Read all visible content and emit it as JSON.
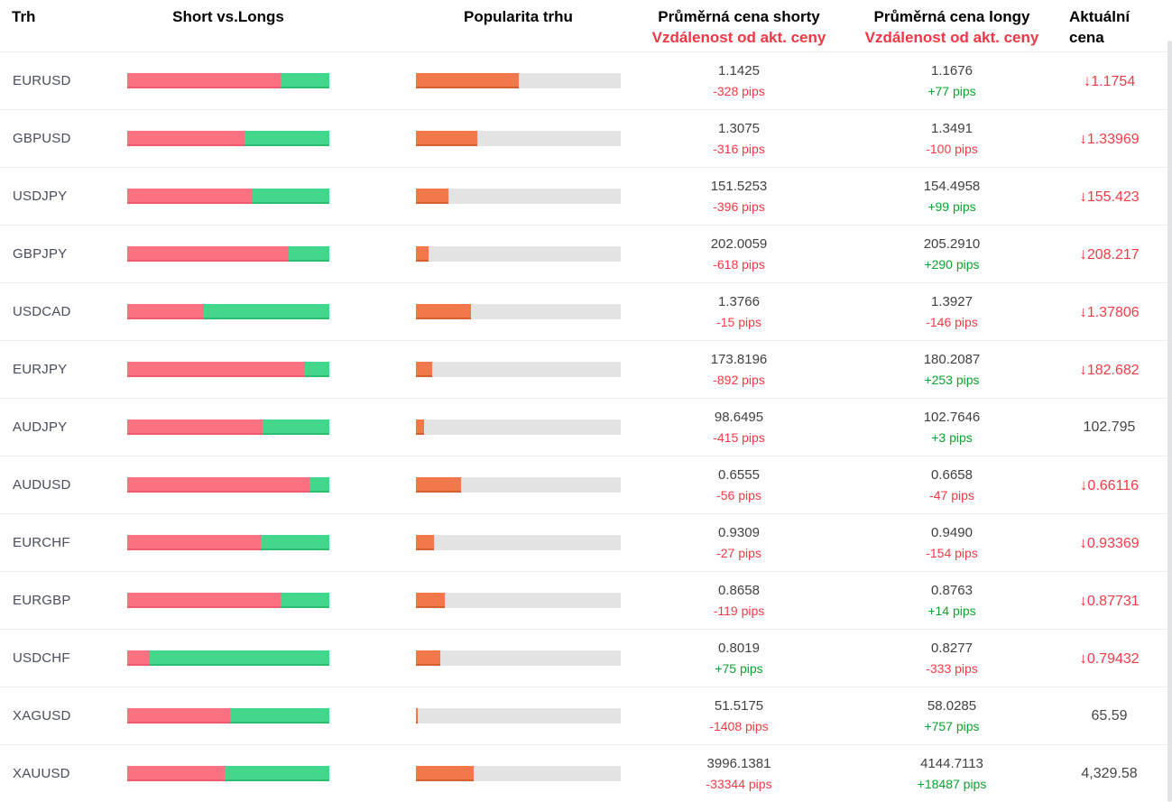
{
  "header": {
    "market": "Trh",
    "short_vs_long": "Short vs.Longs",
    "popularity": "Popularita trhu",
    "avg_short_line1": "Průměrná cena shorty",
    "avg_short_line2": "Vzdálenost od akt. ceny",
    "avg_long_line1": "Průměrná cena longy",
    "avg_long_line2": "Vzdálenost od akt. ceny",
    "current_line1": "Aktuální",
    "current_line2": "cena"
  },
  "icons": {
    "down_arrow": "↓"
  },
  "colors": {
    "accent_red": "#f43b45",
    "accent_green": "#0aa32f",
    "header_sub_red": "#f23645",
    "bar_shorts": "#fc7182",
    "bar_longs": "#43d78c",
    "bar_popularity": "#f0784a",
    "bar_track": "#e3e3e3"
  },
  "rows": [
    {
      "market": "EURUSD",
      "short_pct": 76,
      "long_pct": 24,
      "popularity_pct": 50,
      "short_price": "1.1425",
      "short_dist": "-328 pips",
      "long_price": "1.1676",
      "long_dist": "+77 pips",
      "current_price": "1.1754",
      "current_down": true
    },
    {
      "market": "GBPUSD",
      "short_pct": 58,
      "long_pct": 42,
      "popularity_pct": 30,
      "short_price": "1.3075",
      "short_dist": "-316 pips",
      "long_price": "1.3491",
      "long_dist": "-100 pips",
      "current_price": "1.33969",
      "current_down": true
    },
    {
      "market": "USDJPY",
      "short_pct": 62,
      "long_pct": 38,
      "popularity_pct": 16,
      "short_price": "151.5253",
      "short_dist": "-396 pips",
      "long_price": "154.4958",
      "long_dist": "+99 pips",
      "current_price": "155.423",
      "current_down": true
    },
    {
      "market": "GBPJPY",
      "short_pct": 80,
      "long_pct": 20,
      "popularity_pct": 6,
      "short_price": "202.0059",
      "short_dist": "-618 pips",
      "long_price": "205.2910",
      "long_dist": "+290 pips",
      "current_price": "208.217",
      "current_down": true
    },
    {
      "market": "USDCAD",
      "short_pct": 38,
      "long_pct": 62,
      "popularity_pct": 27,
      "short_price": "1.3766",
      "short_dist": "-15 pips",
      "long_price": "1.3927",
      "long_dist": "-146 pips",
      "current_price": "1.37806",
      "current_down": true
    },
    {
      "market": "EURJPY",
      "short_pct": 88,
      "long_pct": 12,
      "popularity_pct": 8,
      "short_price": "173.8196",
      "short_dist": "-892 pips",
      "long_price": "180.2087",
      "long_dist": "+253 pips",
      "current_price": "182.682",
      "current_down": true
    },
    {
      "market": "AUDJPY",
      "short_pct": 67,
      "long_pct": 33,
      "popularity_pct": 4,
      "short_price": "98.6495",
      "short_dist": "-415 pips",
      "long_price": "102.7646",
      "long_dist": "+3 pips",
      "current_price": "102.795",
      "current_down": false
    },
    {
      "market": "AUDUSD",
      "short_pct": 90,
      "long_pct": 10,
      "popularity_pct": 22,
      "short_price": "0.6555",
      "short_dist": "-56 pips",
      "long_price": "0.6658",
      "long_dist": "-47 pips",
      "current_price": "0.66116",
      "current_down": true
    },
    {
      "market": "EURCHF",
      "short_pct": 66,
      "long_pct": 34,
      "popularity_pct": 9,
      "short_price": "0.9309",
      "short_dist": "-27 pips",
      "long_price": "0.9490",
      "long_dist": "-154 pips",
      "current_price": "0.93369",
      "current_down": true
    },
    {
      "market": "EURGBP",
      "short_pct": 76,
      "long_pct": 24,
      "popularity_pct": 14,
      "short_price": "0.8658",
      "short_dist": "-119 pips",
      "long_price": "0.8763",
      "long_dist": "+14 pips",
      "current_price": "0.87731",
      "current_down": true
    },
    {
      "market": "USDCHF",
      "short_pct": 11,
      "long_pct": 89,
      "popularity_pct": 12,
      "short_price": "0.8019",
      "short_dist": "+75 pips",
      "long_price": "0.8277",
      "long_dist": "-333 pips",
      "current_price": "0.79432",
      "current_down": true
    },
    {
      "market": "XAGUSD",
      "short_pct": 51,
      "long_pct": 49,
      "popularity_pct": 1,
      "short_price": "51.5175",
      "short_dist": "-1408 pips",
      "long_price": "58.0285",
      "long_dist": "+757 pips",
      "current_price": "65.59",
      "current_down": false
    },
    {
      "market": "XAUUSD",
      "short_pct": 48,
      "long_pct": 52,
      "popularity_pct": 28,
      "short_price": "3996.1381",
      "short_dist": "-33344 pips",
      "long_price": "4144.7113",
      "long_dist": "+18487 pips",
      "current_price": "4,329.58",
      "current_down": false
    }
  ]
}
